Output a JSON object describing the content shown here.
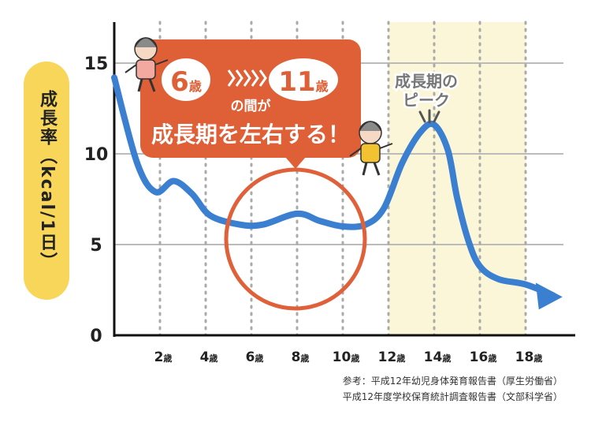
{
  "chart_data": {
    "type": "line",
    "ylabel": "成長率（kcal/1日）",
    "ylim": [
      0,
      17
    ],
    "xlim": [
      0,
      20
    ],
    "yticks": [
      0,
      5,
      10,
      15
    ],
    "xticks": [
      2,
      4,
      6,
      8,
      10,
      12,
      14,
      16,
      18
    ],
    "x_tick_unit": "歳",
    "grid": true,
    "series": [
      {
        "color": "#3a7fd0",
        "points": [
          [
            0,
            14.2
          ],
          [
            1,
            9.5
          ],
          [
            1.8,
            7.9
          ],
          [
            2.6,
            8.5
          ],
          [
            3.4,
            7.8
          ],
          [
            4.2,
            6.6
          ],
          [
            5.5,
            6.1
          ],
          [
            6.5,
            6.1
          ],
          [
            8.0,
            6.7
          ],
          [
            9.0,
            6.3
          ],
          [
            10.0,
            6.0
          ],
          [
            11.0,
            6.1
          ],
          [
            11.8,
            7.0
          ],
          [
            12.6,
            9.5
          ],
          [
            13.4,
            11.2
          ],
          [
            14.0,
            11.6
          ],
          [
            14.6,
            10.2
          ],
          [
            15.0,
            7.6
          ],
          [
            15.5,
            5.2
          ],
          [
            16.0,
            3.8
          ],
          [
            16.8,
            3.1
          ],
          [
            18.0,
            2.8
          ],
          [
            19.2,
            2.2
          ]
        ]
      }
    ],
    "highlight_range": {
      "x": [
        12,
        18
      ],
      "color": "#fcf6d8"
    },
    "annotations": {
      "banner": {
        "age_from": "6",
        "age_to": "11",
        "age_unit": "歳",
        "connector": "の間が",
        "message": "成長期を左右する！"
      },
      "peak_label": {
        "line1": "成長期の",
        "line2": "ピーク",
        "x": 14,
        "y": 11.6
      },
      "circle_label_range": [
        6,
        11
      ]
    },
    "source_lines": [
      "参考：平成12年幼児身体発育報告書（厚生労働省）",
      "平成12年度学校保育統計調査報告書（文部科学省）"
    ],
    "colors": {
      "line": "#3a7fd0",
      "banner": "#df5f37",
      "circle": "#e0603a",
      "axis_pill": "#f7d65a",
      "grid": "#bbbbbb"
    }
  }
}
